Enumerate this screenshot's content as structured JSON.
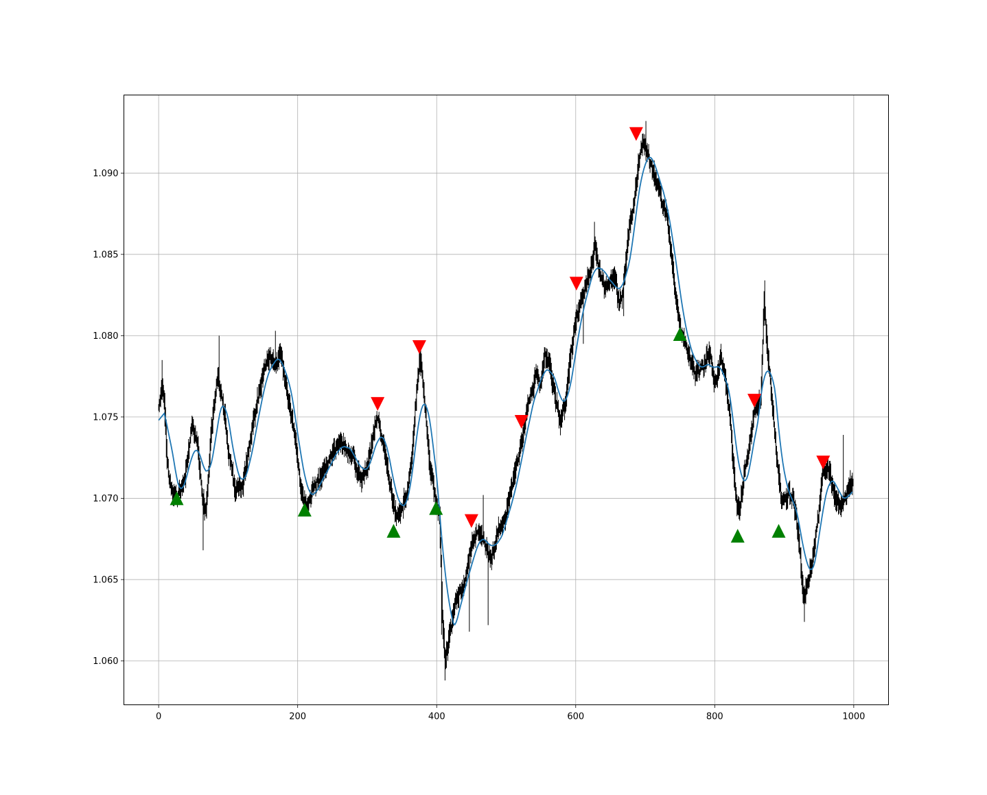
{
  "chart_data": {
    "type": "line",
    "title": "",
    "xlabel": "",
    "ylabel": "",
    "xlim": [
      -50,
      1050
    ],
    "ylim": [
      1.0573,
      1.0948
    ],
    "grid": true,
    "x_ticks": [
      0,
      200,
      400,
      600,
      800,
      1000
    ],
    "x_tick_labels": [
      "0",
      "200",
      "400",
      "600",
      "800",
      "1000"
    ],
    "y_ticks": [
      1.06,
      1.065,
      1.07,
      1.075,
      1.08,
      1.085,
      1.09
    ],
    "y_tick_labels": [
      "1.060",
      "1.065",
      "1.070",
      "1.075",
      "1.080",
      "1.085",
      "1.090"
    ],
    "series": [
      {
        "kind": "ohlc-bars",
        "color": "#000000",
        "n_bars": 1000,
        "center_path": [
          [
            0,
            1.0755
          ],
          [
            5,
            1.077
          ],
          [
            8,
            1.076
          ],
          [
            12,
            1.072
          ],
          [
            18,
            1.0705
          ],
          [
            28,
            1.07
          ],
          [
            38,
            1.0715
          ],
          [
            48,
            1.0745
          ],
          [
            55,
            1.0735
          ],
          [
            63,
            1.07
          ],
          [
            68,
            1.069
          ],
          [
            75,
            1.074
          ],
          [
            85,
            1.0775
          ],
          [
            92,
            1.076
          ],
          [
            100,
            1.073
          ],
          [
            110,
            1.0705
          ],
          [
            122,
            1.071
          ],
          [
            135,
            1.0745
          ],
          [
            150,
            1.0775
          ],
          [
            160,
            1.079
          ],
          [
            168,
            1.078
          ],
          [
            175,
            1.079
          ],
          [
            185,
            1.0765
          ],
          [
            195,
            1.074
          ],
          [
            205,
            1.0705
          ],
          [
            212,
            1.0695
          ],
          [
            220,
            1.0705
          ],
          [
            235,
            1.0715
          ],
          [
            250,
            1.073
          ],
          [
            265,
            1.0735
          ],
          [
            280,
            1.0725
          ],
          [
            292,
            1.071
          ],
          [
            300,
            1.0715
          ],
          [
            308,
            1.0738
          ],
          [
            315,
            1.075
          ],
          [
            322,
            1.0738
          ],
          [
            330,
            1.0715
          ],
          [
            340,
            1.069
          ],
          [
            348,
            1.069
          ],
          [
            358,
            1.0705
          ],
          [
            365,
            1.073
          ],
          [
            372,
            1.077
          ],
          [
            376,
            1.0785
          ],
          [
            382,
            1.076
          ],
          [
            390,
            1.072
          ],
          [
            398,
            1.07
          ],
          [
            404,
            1.069
          ],
          [
            408,
            1.063
          ],
          [
            412,
            1.06
          ],
          [
            418,
            1.0615
          ],
          [
            428,
            1.0635
          ],
          [
            440,
            1.065
          ],
          [
            450,
            1.067
          ],
          [
            458,
            1.068
          ],
          [
            468,
            1.0672
          ],
          [
            478,
            1.0662
          ],
          [
            488,
            1.068
          ],
          [
            500,
            1.069
          ],
          [
            510,
            1.071
          ],
          [
            520,
            1.073
          ],
          [
            530,
            1.0755
          ],
          [
            542,
            1.0775
          ],
          [
            550,
            1.077
          ],
          [
            556,
            1.079
          ],
          [
            562,
            1.078
          ],
          [
            570,
            1.0762
          ],
          [
            578,
            1.0745
          ],
          [
            585,
            1.076
          ],
          [
            593,
            1.079
          ],
          [
            600,
            1.081
          ],
          [
            610,
            1.0825
          ],
          [
            620,
            1.084
          ],
          [
            628,
            1.0855
          ],
          [
            636,
            1.0835
          ],
          [
            646,
            1.083
          ],
          [
            655,
            1.0835
          ],
          [
            662,
            1.082
          ],
          [
            668,
            1.0825
          ],
          [
            675,
            1.086
          ],
          [
            683,
            1.088
          ],
          [
            690,
            1.0905
          ],
          [
            696,
            1.0918
          ],
          [
            703,
            1.091
          ],
          [
            712,
            1.09
          ],
          [
            722,
            1.0885
          ],
          [
            732,
            1.087
          ],
          [
            742,
            1.083
          ],
          [
            752,
            1.08
          ],
          [
            762,
            1.079
          ],
          [
            772,
            1.0775
          ],
          [
            782,
            1.078
          ],
          [
            792,
            1.079
          ],
          [
            800,
            1.077
          ],
          [
            808,
            1.0785
          ],
          [
            815,
            1.0775
          ],
          [
            822,
            1.075
          ],
          [
            830,
            1.07
          ],
          [
            836,
            1.069
          ],
          [
            842,
            1.0715
          ],
          [
            850,
            1.0735
          ],
          [
            858,
            1.0755
          ],
          [
            866,
            1.076
          ],
          [
            871,
            1.082
          ],
          [
            876,
            1.079
          ],
          [
            882,
            1.076
          ],
          [
            890,
            1.072
          ],
          [
            897,
            1.0695
          ],
          [
            905,
            1.0705
          ],
          [
            912,
            1.07
          ],
          [
            920,
            1.068
          ],
          [
            927,
            1.064
          ],
          [
            932,
            1.0645
          ],
          [
            940,
            1.066
          ],
          [
            948,
            1.0685
          ],
          [
            955,
            1.0715
          ],
          [
            962,
            1.0718
          ],
          [
            970,
            1.0705
          ],
          [
            980,
            1.0695
          ],
          [
            988,
            1.07
          ],
          [
            995,
            1.071
          ],
          [
            1000,
            1.071
          ]
        ],
        "noise_amplitude": 0.0004,
        "spikes": [
          [
            5,
            1.0785
          ],
          [
            64,
            1.0668
          ],
          [
            87,
            1.08
          ],
          [
            168,
            1.0803
          ],
          [
            375,
            1.0792
          ],
          [
            407,
            1.0616
          ],
          [
            412,
            1.0588
          ],
          [
            447,
            1.0618
          ],
          [
            467,
            1.0702
          ],
          [
            474,
            1.0622
          ],
          [
            611,
            1.0795
          ],
          [
            627,
            1.087
          ],
          [
            669,
            1.0812
          ],
          [
            701,
            1.0932
          ],
          [
            740,
            1.085
          ],
          [
            809,
            1.0795
          ],
          [
            872,
            1.0834
          ],
          [
            929,
            1.0624
          ],
          [
            985,
            1.0739
          ]
        ]
      },
      {
        "kind": "smoothed-line",
        "color": "#1f77b4",
        "lag": 6,
        "start_value": 1.0748
      },
      {
        "kind": "sell-markers",
        "marker": "triangle-down",
        "color": "#ff0000",
        "points": [
          [
            315,
            1.0758
          ],
          [
            375,
            1.0793
          ],
          [
            450,
            1.0686
          ],
          [
            522,
            1.0747
          ],
          [
            601,
            1.0832
          ],
          [
            687,
            1.0924
          ],
          [
            857,
            1.076
          ],
          [
            956,
            1.0722
          ]
        ]
      },
      {
        "kind": "buy-markers",
        "marker": "triangle-up",
        "color": "#008000",
        "points": [
          [
            26,
            1.07
          ],
          [
            210,
            1.0693
          ],
          [
            338,
            1.068
          ],
          [
            399,
            1.0694
          ],
          [
            750,
            1.0801
          ],
          [
            833,
            1.0677
          ],
          [
            892,
            1.068
          ]
        ]
      }
    ]
  }
}
